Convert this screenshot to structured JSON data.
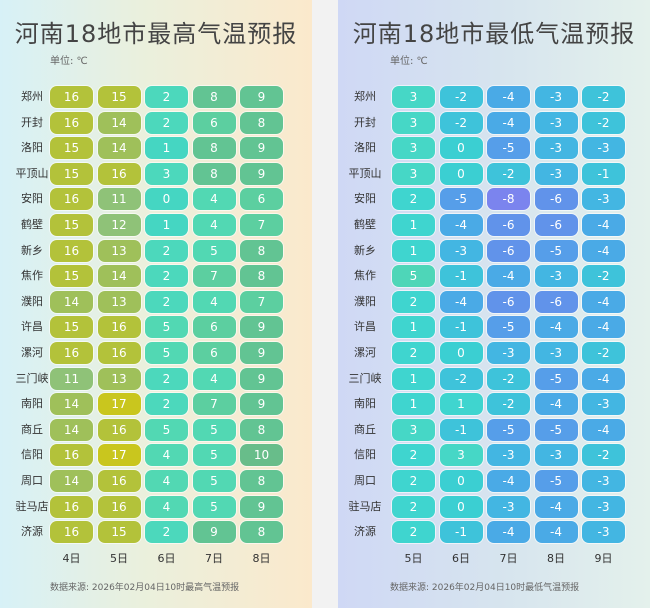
{
  "left": {
    "title": "河南18地市最高气温预报",
    "unit": "单位: ℃",
    "source": "数据来源: 2026年02月04日10时最高气温预报",
    "days": [
      "4日",
      "5日",
      "6日",
      "7日",
      "8日"
    ],
    "rows": [
      {
        "city": "郑州",
        "values": [
          "16",
          "15",
          "2",
          "8",
          "9"
        ]
      },
      {
        "city": "开封",
        "values": [
          "16",
          "14",
          "2",
          "6",
          "8"
        ]
      },
      {
        "city": "洛阳",
        "values": [
          "15",
          "14",
          "1",
          "8",
          "9"
        ]
      },
      {
        "city": "平顶山",
        "values": [
          "15",
          "16",
          "3",
          "8",
          "9"
        ]
      },
      {
        "city": "安阳",
        "values": [
          "16",
          "11",
          "0",
          "4",
          "6"
        ]
      },
      {
        "city": "鹤壁",
        "values": [
          "15",
          "12",
          "1",
          "4",
          "7"
        ]
      },
      {
        "city": "新乡",
        "values": [
          "16",
          "13",
          "2",
          "5",
          "8"
        ]
      },
      {
        "city": "焦作",
        "values": [
          "15",
          "14",
          "2",
          "7",
          "8"
        ]
      },
      {
        "city": "濮阳",
        "values": [
          "14",
          "13",
          "2",
          "4",
          "7"
        ]
      },
      {
        "city": "许昌",
        "values": [
          "15",
          "16",
          "5",
          "6",
          "9"
        ]
      },
      {
        "city": "漯河",
        "values": [
          "16",
          "16",
          "5",
          "6",
          "9"
        ]
      },
      {
        "city": "三门峡",
        "values": [
          "11",
          "13",
          "2",
          "4",
          "9"
        ]
      },
      {
        "city": "南阳",
        "values": [
          "14",
          "17",
          "2",
          "7",
          "9"
        ]
      },
      {
        "city": "商丘",
        "values": [
          "14",
          "16",
          "5",
          "5",
          "8"
        ]
      },
      {
        "city": "信阳",
        "values": [
          "16",
          "17",
          "4",
          "5",
          "10"
        ]
      },
      {
        "city": "周口",
        "values": [
          "14",
          "16",
          "4",
          "5",
          "8"
        ]
      },
      {
        "city": "驻马店",
        "values": [
          "16",
          "16",
          "4",
          "5",
          "9"
        ]
      },
      {
        "city": "济源",
        "values": [
          "16",
          "15",
          "2",
          "9",
          "8"
        ]
      }
    ]
  },
  "right": {
    "title": "河南18地市最低气温预报",
    "unit": "单位: ℃",
    "source": "数据来源: 2026年02月04日10时最低气温预报",
    "days": [
      "5日",
      "6日",
      "7日",
      "8日",
      "9日"
    ],
    "rows": [
      {
        "city": "郑州",
        "values": [
          "3",
          "-2",
          "-4",
          "-3",
          "-2"
        ]
      },
      {
        "city": "开封",
        "values": [
          "3",
          "-2",
          "-4",
          "-3",
          "-2"
        ]
      },
      {
        "city": "洛阳",
        "values": [
          "3",
          "0",
          "-5",
          "-3",
          "-3"
        ]
      },
      {
        "city": "平顶山",
        "values": [
          "3",
          "0",
          "-2",
          "-3",
          "-1"
        ]
      },
      {
        "city": "安阳",
        "values": [
          "2",
          "-5",
          "-8",
          "-6",
          "-3"
        ]
      },
      {
        "city": "鹤壁",
        "values": [
          "1",
          "-4",
          "-6",
          "-6",
          "-4"
        ]
      },
      {
        "city": "新乡",
        "values": [
          "1",
          "-3",
          "-6",
          "-5",
          "-4"
        ]
      },
      {
        "city": "焦作",
        "values": [
          "5",
          "-1",
          "-4",
          "-3",
          "-2"
        ]
      },
      {
        "city": "濮阳",
        "values": [
          "2",
          "-4",
          "-6",
          "-6",
          "-4"
        ]
      },
      {
        "city": "许昌",
        "values": [
          "1",
          "-1",
          "-5",
          "-4",
          "-4"
        ]
      },
      {
        "city": "漯河",
        "values": [
          "2",
          "0",
          "-3",
          "-3",
          "-2"
        ]
      },
      {
        "city": "三门峡",
        "values": [
          "1",
          "-2",
          "-2",
          "-5",
          "-4"
        ]
      },
      {
        "city": "南阳",
        "values": [
          "1",
          "1",
          "-2",
          "-4",
          "-3"
        ]
      },
      {
        "city": "商丘",
        "values": [
          "3",
          "-1",
          "-5",
          "-5",
          "-4"
        ]
      },
      {
        "city": "信阳",
        "values": [
          "2",
          "3",
          "-3",
          "-3",
          "-2"
        ]
      },
      {
        "city": "周口",
        "values": [
          "2",
          "0",
          "-4",
          "-5",
          "-3"
        ]
      },
      {
        "city": "驻马店",
        "values": [
          "2",
          "0",
          "-3",
          "-4",
          "-3"
        ]
      },
      {
        "city": "济源",
        "values": [
          "2",
          "-1",
          "-4",
          "-4",
          "-3"
        ]
      }
    ]
  },
  "colors": {
    "high_0_1": "#45d6c2",
    "high_2_3": "#4cd8bc",
    "high_4_5": "#52d8b3",
    "high_6_7": "#5ccfa0",
    "high_8_9": "#62c493",
    "high_10": "#68bd8a",
    "high_11_12": "#8fc278",
    "high_13_14": "#9fc05a",
    "high_15_16": "#b3c23a",
    "high_17": "#c9c61e",
    "low_5": "#4ed6b8",
    "low_3": "#46d7c6",
    "low_1_2": "#3fd5cf",
    "low_0": "#3bcfd2",
    "low_m1_m2": "#3ec3da",
    "low_m3": "#43b6e2",
    "low_m4": "#4aaae6",
    "low_m5": "#569ee9",
    "low_m6": "#6193ea",
    "low_m8": "#7b84ee"
  }
}
